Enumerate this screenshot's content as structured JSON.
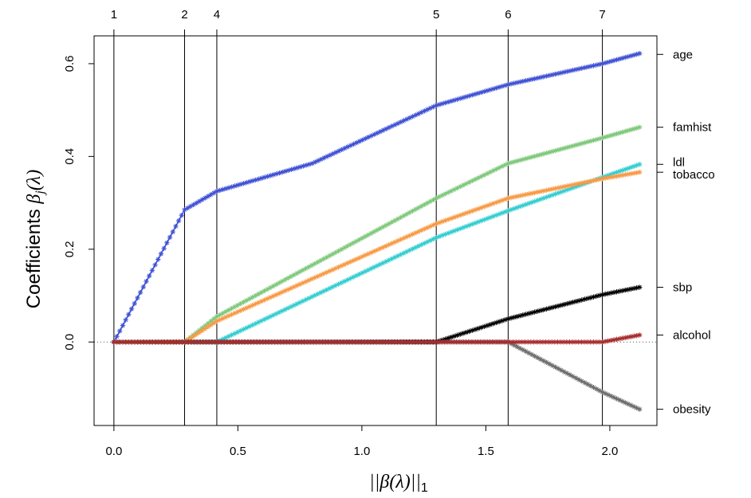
{
  "chart_data": {
    "type": "line",
    "xlabel": "||β(λ)||₁",
    "ylabel": "Coefficients β_j(λ)",
    "ylabel_text": "Coefficients ",
    "ylabel_math": "β",
    "ylabel_sub": "j",
    "ylabel_arg": "(λ)",
    "xlabel_norm": "||",
    "xlabel_beta": "β",
    "xlabel_arg": "(λ)",
    "xlabel_end": "||",
    "xlabel_sub": "1",
    "xlim": [
      -0.08,
      2.19
    ],
    "ylim": [
      -0.18,
      0.66
    ],
    "x_ticks": [
      0.0,
      0.5,
      1.0,
      1.5,
      2.0
    ],
    "x_tick_labels": [
      "0.0",
      "0.5",
      "1.0",
      "1.5",
      "2.0"
    ],
    "y_ticks": [
      0.0,
      0.2,
      0.4,
      0.6
    ],
    "y_tick_labels": [
      "0.0",
      "0.2",
      "0.4",
      "0.6"
    ],
    "grid": false,
    "zero_line": true,
    "breakpoints": [
      {
        "x": 0.0,
        "label": "1"
      },
      {
        "x": 0.285,
        "label": "2"
      },
      {
        "x": 0.415,
        "label": "4"
      },
      {
        "x": 1.3,
        "label": "5"
      },
      {
        "x": 1.59,
        "label": "6"
      },
      {
        "x": 1.97,
        "label": "7"
      }
    ],
    "series": [
      {
        "name": "age",
        "color": "#3f51d4",
        "label_y": 0.62,
        "points": [
          [
            0.0,
            0.0
          ],
          [
            0.285,
            0.285
          ],
          [
            0.415,
            0.325
          ],
          [
            0.8,
            0.385
          ],
          [
            1.3,
            0.51
          ],
          [
            1.59,
            0.555
          ],
          [
            1.97,
            0.6
          ],
          [
            2.12,
            0.622
          ]
        ]
      },
      {
        "name": "famhist",
        "color": "#7ec87b",
        "label_y": 0.463,
        "points": [
          [
            0.0,
            0.0
          ],
          [
            0.285,
            0.0
          ],
          [
            0.415,
            0.055
          ],
          [
            1.3,
            0.31
          ],
          [
            1.59,
            0.385
          ],
          [
            1.97,
            0.44
          ],
          [
            2.12,
            0.463
          ]
        ]
      },
      {
        "name": "ldl",
        "color": "#34cdd0",
        "label_y": 0.383,
        "points": [
          [
            0.0,
            0.0
          ],
          [
            0.415,
            0.0
          ],
          [
            1.3,
            0.225
          ],
          [
            1.59,
            0.283
          ],
          [
            1.97,
            0.355
          ],
          [
            2.12,
            0.383
          ]
        ]
      },
      {
        "name": "tobacco",
        "color": "#f79a45",
        "label_y": 0.366,
        "points": [
          [
            0.0,
            0.0
          ],
          [
            0.285,
            0.0
          ],
          [
            0.415,
            0.045
          ],
          [
            1.3,
            0.255
          ],
          [
            1.59,
            0.31
          ],
          [
            1.97,
            0.352
          ],
          [
            2.12,
            0.366
          ]
        ]
      },
      {
        "name": "sbp",
        "color": "#000000",
        "label_y": 0.118,
        "points": [
          [
            0.0,
            0.0
          ],
          [
            1.3,
            0.0
          ],
          [
            1.59,
            0.05
          ],
          [
            1.97,
            0.102
          ],
          [
            2.12,
            0.118
          ]
        ]
      },
      {
        "name": "obesity",
        "color": "#6e6e6e",
        "label_y": -0.145,
        "points": [
          [
            0.0,
            0.0
          ],
          [
            1.59,
            0.0
          ],
          [
            1.97,
            -0.108
          ],
          [
            2.12,
            -0.145
          ]
        ]
      },
      {
        "name": "alcohol",
        "color": "#a82b2b",
        "label_y": 0.015,
        "points": [
          [
            0.0,
            0.0
          ],
          [
            1.97,
            0.0
          ],
          [
            2.12,
            0.015
          ]
        ]
      }
    ]
  }
}
